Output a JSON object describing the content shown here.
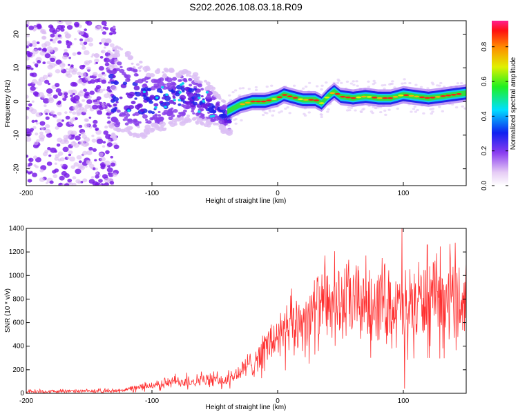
{
  "title": "S202.2026.108.03.18.R09",
  "chart_data": [
    {
      "type": "heatmap",
      "xlabel": "Height of straight line (km)",
      "ylabel": "Frequency (Hz)",
      "xlim": [
        -200,
        150
      ],
      "ylim": [
        -25,
        24
      ],
      "xticks": [
        -200,
        -100,
        0,
        100
      ],
      "yticks": [
        -20,
        -10,
        0,
        10,
        20
      ],
      "colorbar": {
        "label": "Normalized spectral amplitude",
        "range": [
          0,
          0.95
        ],
        "ticks": [
          "0.0",
          "0.2",
          "0.4",
          "0.6",
          "0.8"
        ]
      },
      "ridge": {
        "x": [
          -40,
          -35,
          -30,
          -20,
          -10,
          0,
          5,
          10,
          20,
          30,
          35,
          40,
          45,
          50,
          60,
          70,
          80,
          90,
          100,
          110,
          120,
          130,
          140,
          150
        ],
        "freq": [
          -3,
          -2,
          -1,
          0,
          0,
          1,
          2,
          1.5,
          0.5,
          0.5,
          -0.5,
          1.5,
          3,
          1.5,
          1,
          1.5,
          1,
          1,
          2,
          1.5,
          1,
          1.5,
          2,
          2.5
        ]
      }
    },
    {
      "type": "line",
      "xlabel": "Height of straight line (km)",
      "ylabel": "SNR (10 * v/v)",
      "xlim": [
        -200,
        150
      ],
      "ylim": [
        0,
        1400
      ],
      "xticks": [
        -200,
        -100,
        0,
        100
      ],
      "yticks": [
        0,
        200,
        400,
        600,
        800,
        1000,
        1200,
        1400
      ],
      "series": [
        {
          "name": "SNR",
          "color": "#ff3030",
          "envelope_x": [
            -200,
            -130,
            -115,
            -100,
            -80,
            -60,
            -40,
            -30,
            -20,
            -10,
            0,
            10,
            20,
            30,
            40,
            50,
            60,
            70,
            80,
            90,
            99,
            105,
            110,
            120,
            130,
            140,
            150
          ],
          "envelope_mean": [
            15,
            20,
            40,
            70,
            100,
            110,
            110,
            180,
            260,
            380,
            480,
            540,
            620,
            700,
            730,
            760,
            770,
            780,
            790,
            760,
            680,
            760,
            780,
            780,
            770,
            790,
            800
          ],
          "peak": {
            "x": 99,
            "y": 1400
          },
          "min_spike": {
            "x": 101,
            "y": 40
          }
        }
      ]
    }
  ]
}
